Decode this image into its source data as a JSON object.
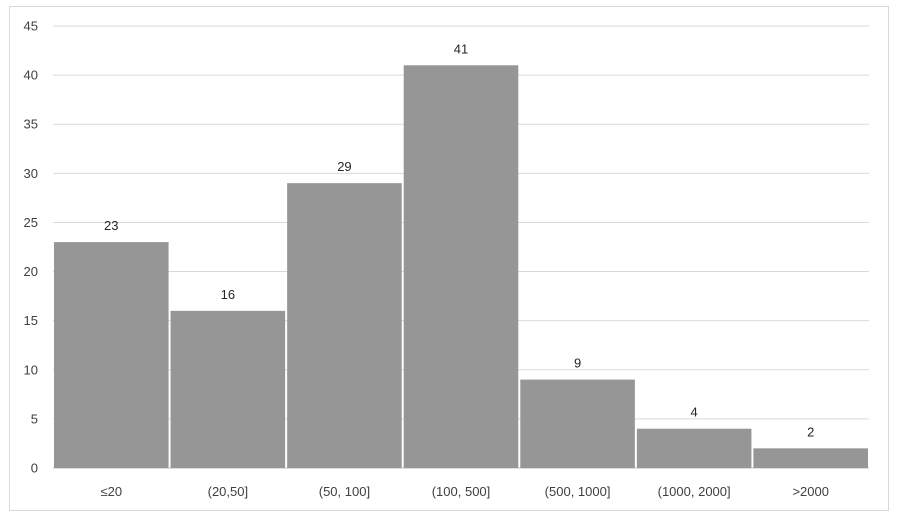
{
  "chart_data": {
    "type": "bar",
    "title": "",
    "xlabel": "",
    "ylabel": "",
    "categories": [
      "≤20",
      "(20,50]",
      "(50, 100]",
      "(100, 500]",
      "(500, 1000]",
      "(1000, 2000]",
      ">2000"
    ],
    "values": [
      23,
      16,
      29,
      41,
      9,
      4,
      2
    ],
    "ylim": [
      0,
      45
    ],
    "yticks": [
      0,
      5,
      10,
      15,
      20,
      25,
      30,
      35,
      40,
      45
    ],
    "grid": true,
    "data_labels": true,
    "bar_color": "#969696",
    "gridline_color": "#d9d9d9",
    "legend": "none"
  }
}
